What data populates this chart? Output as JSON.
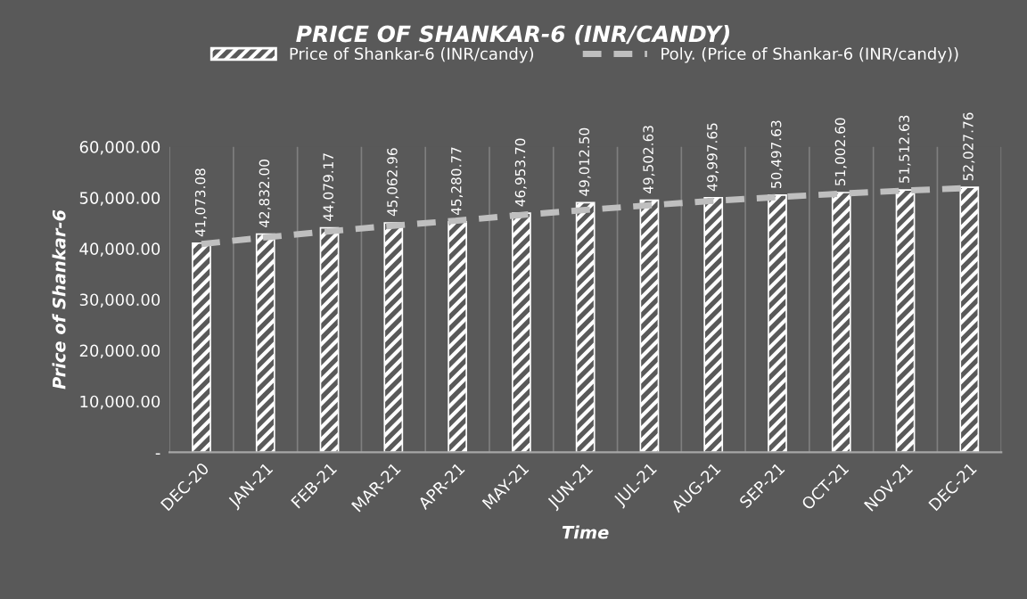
{
  "chart_data": {
    "type": "bar",
    "title": "PRICE OF SHANKAR-6 (INR/CANDY)",
    "xlabel": "Time",
    "ylabel": "Price of Shankar-6",
    "categories": [
      "DEC-20",
      "JAN-21",
      "FEB-21",
      "MAR-21",
      "APR-21",
      "MAY-21",
      "JUN-21",
      "JUL-21",
      "AUG-21",
      "SEP-21",
      "OCT-21",
      "NOV-21",
      "DEC-21"
    ],
    "series": [
      {
        "name": "Price of Shankar-6 (INR/candy)",
        "color": "#ffffff",
        "values": [
          41073.08,
          42832.0,
          44079.17,
          45062.96,
          45280.77,
          46953.7,
          49012.5,
          49502.63,
          49997.65,
          50497.63,
          51002.6,
          51512.63,
          52027.76
        ],
        "value_labels": [
          "41,073.08",
          "42,832.00",
          "44,079.17",
          "45,062.96",
          "45,280.77",
          "46,953.70",
          "49,012.50",
          "49,502.63",
          "49,997.65",
          "50,497.63",
          "51,002.60",
          "51,512.63",
          "52,027.76"
        ]
      },
      {
        "name": "Poly. (Price of Shankar-6 (INR/candy))",
        "type": "line",
        "color": "#bfbfbf",
        "line_style": "dashed",
        "values": [
          40900,
          42200,
          43400,
          44500,
          45500,
          46600,
          47600,
          48500,
          49400,
          50100,
          50800,
          51400,
          51900
        ]
      }
    ],
    "ylim": [
      0,
      60000
    ],
    "yticks": [
      {
        "value": 0,
        "label": "-"
      },
      {
        "value": 10000,
        "label": "10,000.00"
      },
      {
        "value": 20000,
        "label": "20,000.00"
      },
      {
        "value": 30000,
        "label": "30,000.00"
      },
      {
        "value": 40000,
        "label": "40,000.00"
      },
      {
        "value": 50000,
        "label": "50,000.00"
      },
      {
        "value": 60000,
        "label": "60,000.00"
      }
    ],
    "grid": "x",
    "legend": "top"
  }
}
